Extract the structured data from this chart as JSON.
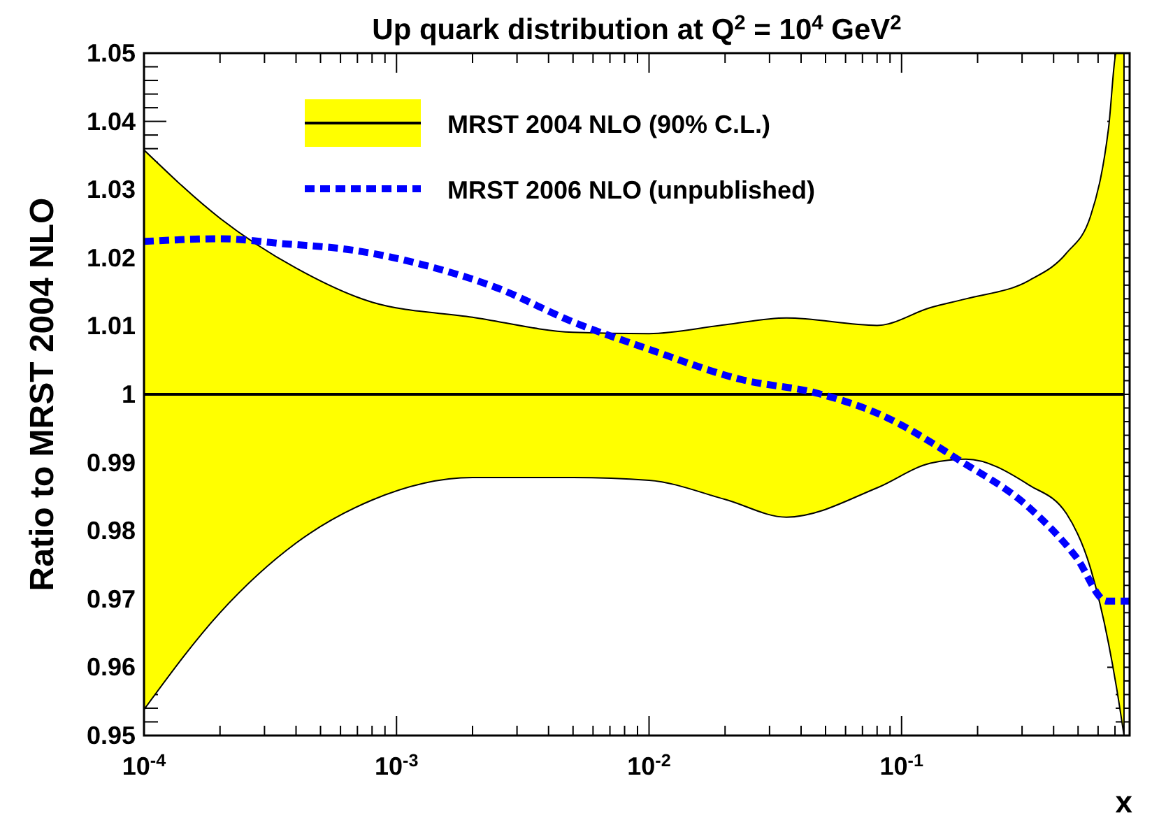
{
  "chart_data": {
    "type": "line",
    "title": "Up quark distribution at Q$^{2}$ = 10$^{4}$ GeV$^{2}$",
    "xlabel": "x",
    "ylabel": "Ratio to MRST 2004 NLO",
    "log": "x",
    "grid": false,
    "legend": "top left",
    "xlim": [
      0.0001,
      0.8
    ],
    "ylim": [
      0.95,
      1.05
    ],
    "xticks": [
      {
        "value": 0.0001,
        "label": "10$^{-4}$"
      },
      {
        "value": 0.0002,
        "label": null
      },
      {
        "value": 0.0003,
        "label": null
      },
      {
        "value": 0.0004,
        "label": null
      },
      {
        "value": 0.0005,
        "label": null
      },
      {
        "value": 0.0006,
        "label": null
      },
      {
        "value": 0.0007,
        "label": null
      },
      {
        "value": 0.0008,
        "label": null
      },
      {
        "value": 0.0009,
        "label": null
      },
      {
        "value": 0.001,
        "label": "10$^{-3}$"
      },
      {
        "value": 0.002,
        "label": null
      },
      {
        "value": 0.003,
        "label": null
      },
      {
        "value": 0.004,
        "label": null
      },
      {
        "value": 0.005,
        "label": null
      },
      {
        "value": 0.006,
        "label": null
      },
      {
        "value": 0.007,
        "label": null
      },
      {
        "value": 0.008,
        "label": null
      },
      {
        "value": 0.009,
        "label": null
      },
      {
        "value": 0.01,
        "label": "10$^{-2}$"
      },
      {
        "value": 0.02,
        "label": null
      },
      {
        "value": 0.03,
        "label": null
      },
      {
        "value": 0.04,
        "label": null
      },
      {
        "value": 0.05,
        "label": null
      },
      {
        "value": 0.06,
        "label": null
      },
      {
        "value": 0.07,
        "label": null
      },
      {
        "value": 0.08,
        "label": null
      },
      {
        "value": 0.09,
        "label": null
      },
      {
        "value": 0.1,
        "label": "10$^{-1}$"
      },
      {
        "value": 0.2,
        "label": null
      },
      {
        "value": 0.3,
        "label": null
      },
      {
        "value": 0.4,
        "label": null
      },
      {
        "value": 0.5,
        "label": null
      },
      {
        "value": 0.6,
        "label": null
      },
      {
        "value": 0.7,
        "label": null
      }
    ],
    "yticks": [
      0.95,
      {
        "value": 0.952,
        "label": null
      },
      {
        "value": 0.954,
        "label": null
      },
      {
        "value": 0.956,
        "label": null
      },
      {
        "value": 0.958,
        "label": null
      },
      0.96,
      {
        "value": 0.962,
        "label": null
      },
      {
        "value": 0.964,
        "label": null
      },
      {
        "value": 0.966,
        "label": null
      },
      {
        "value": 0.968,
        "label": null
      },
      0.97,
      {
        "value": 0.972,
        "label": null
      },
      {
        "value": 0.974,
        "label": null
      },
      {
        "value": 0.976,
        "label": null
      },
      {
        "value": 0.978,
        "label": null
      },
      0.98,
      {
        "value": 0.982,
        "label": null
      },
      {
        "value": 0.984,
        "label": null
      },
      {
        "value": 0.986,
        "label": null
      },
      {
        "value": 0.988,
        "label": null
      },
      0.99,
      {
        "value": 0.992,
        "label": null
      },
      {
        "value": 0.994,
        "label": null
      },
      {
        "value": 0.996,
        "label": null
      },
      {
        "value": 0.998,
        "label": null
      },
      1,
      {
        "value": 1.002,
        "label": null
      },
      {
        "value": 1.004,
        "label": null
      },
      {
        "value": 1.006,
        "label": null
      },
      {
        "value": 1.008,
        "label": null
      },
      1.01,
      {
        "value": 1.012,
        "label": null
      },
      {
        "value": 1.014,
        "label": null
      },
      {
        "value": 1.016,
        "label": null
      },
      {
        "value": 1.018,
        "label": null
      },
      1.02,
      {
        "value": 1.022,
        "label": null
      },
      {
        "value": 1.024,
        "label": null
      },
      {
        "value": 1.026,
        "label": null
      },
      {
        "value": 1.028,
        "label": null
      },
      1.03,
      {
        "value": 1.032,
        "label": null
      },
      {
        "value": 1.034,
        "label": null
      },
      {
        "value": 1.036,
        "label": null
      },
      {
        "value": 1.038,
        "label": null
      },
      1.04,
      {
        "value": 1.042,
        "label": null
      },
      {
        "value": 1.044,
        "label": null
      },
      {
        "value": 1.046,
        "label": null
      },
      {
        "value": 1.048,
        "label": null
      },
      1.05
    ],
    "series": [
      {
        "name": "MRST 2004 NLO (90% C.L.)",
        "color": "#000000",
        "line_style": "solid",
        "x": [
          0.0001,
          0.0002,
          0.0004,
          0.0008,
          0.002,
          0.005,
          0.01,
          0.02,
          0.035,
          0.08,
          0.13,
          0.18,
          0.32,
          0.45,
          0.56,
          0.66,
          0.71,
          0.76
        ],
        "values": [
          1,
          1,
          1,
          1,
          1,
          1,
          1,
          1,
          1,
          1,
          1,
          1,
          1,
          1,
          1,
          1,
          1,
          1
        ],
        "upper": [
          1.0358,
          1.0258,
          1.0185,
          1.0135,
          1.0113,
          1.0091,
          1.0089,
          1.0102,
          1.0112,
          1.0101,
          1.0127,
          1.014,
          1.0167,
          1.0207,
          1.0261,
          1.039,
          1.05,
          1.05
        ],
        "lower": [
          0.9538,
          0.968,
          0.9782,
          0.9845,
          0.9878,
          0.9878,
          0.9874,
          0.9846,
          0.982,
          0.9863,
          0.9899,
          0.9905,
          0.9867,
          0.9825,
          0.9745,
          0.9635,
          0.957,
          0.95
        ]
      },
      {
        "name": "MRST 2006 NLO (unpublished)",
        "color": "#0000ff",
        "line_style": "dashed",
        "x": [
          0.0001,
          0.0002,
          0.00035,
          0.00068,
          0.0013,
          0.0025,
          0.005,
          0.01,
          0.023,
          0.047,
          0.085,
          0.17,
          0.32,
          0.49,
          0.65,
          0.8
        ],
        "values": [
          1.0224,
          1.0228,
          1.0221,
          1.0211,
          1.0189,
          1.0156,
          1.0106,
          1.0066,
          1.0022,
          1.0001,
          0.9968,
          0.9903,
          0.9834,
          0.9762,
          0.9697,
          0.9697
        ]
      }
    ]
  }
}
